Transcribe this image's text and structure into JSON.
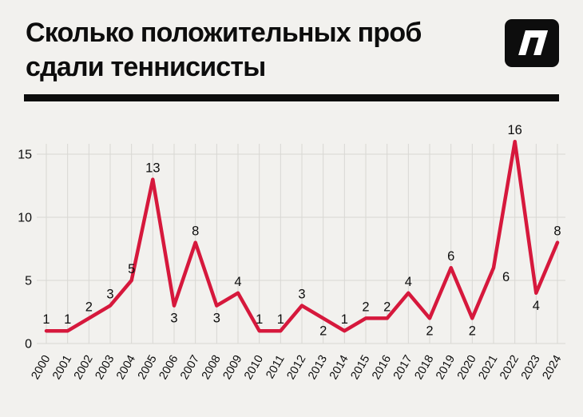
{
  "page": {
    "background": "#f2f1ee"
  },
  "header": {
    "title_line1": "Сколько положительных проб",
    "title_line2": "сдали теннисисты",
    "logo_name": "brand-logo"
  },
  "chart_data": {
    "type": "line",
    "title": "Сколько положительных проб сдали теннисисты",
    "x": [
      "2000",
      "2001",
      "2002",
      "2003",
      "2004",
      "2005",
      "2006",
      "2007",
      "2008",
      "2009",
      "2010",
      "2011",
      "2012",
      "2013",
      "2014",
      "2015",
      "2016",
      "2017",
      "2018",
      "2019",
      "2020",
      "2021",
      "2022",
      "2023",
      "2024"
    ],
    "values": [
      1,
      1,
      2,
      3,
      5,
      13,
      3,
      8,
      3,
      4,
      1,
      1,
      3,
      2,
      1,
      2,
      2,
      4,
      2,
      6,
      2,
      6,
      16,
      4,
      8
    ],
    "label_positions": [
      "above",
      "above",
      "above",
      "above",
      "above",
      "above",
      "below",
      "above",
      "below",
      "above",
      "above",
      "above",
      "above",
      "below",
      "above",
      "above",
      "above",
      "above",
      "below",
      "above",
      "below",
      "below-right",
      "above",
      "below",
      "above"
    ],
    "yticks": [
      0,
      5,
      10,
      15
    ],
    "ylim": [
      0,
      16.5
    ],
    "xlabel": "",
    "ylabel": "",
    "grid": true,
    "legend": "none",
    "line_color": "#d6183c",
    "grid_color": "#d8d7d3",
    "text_color": "#0d0d0d"
  }
}
